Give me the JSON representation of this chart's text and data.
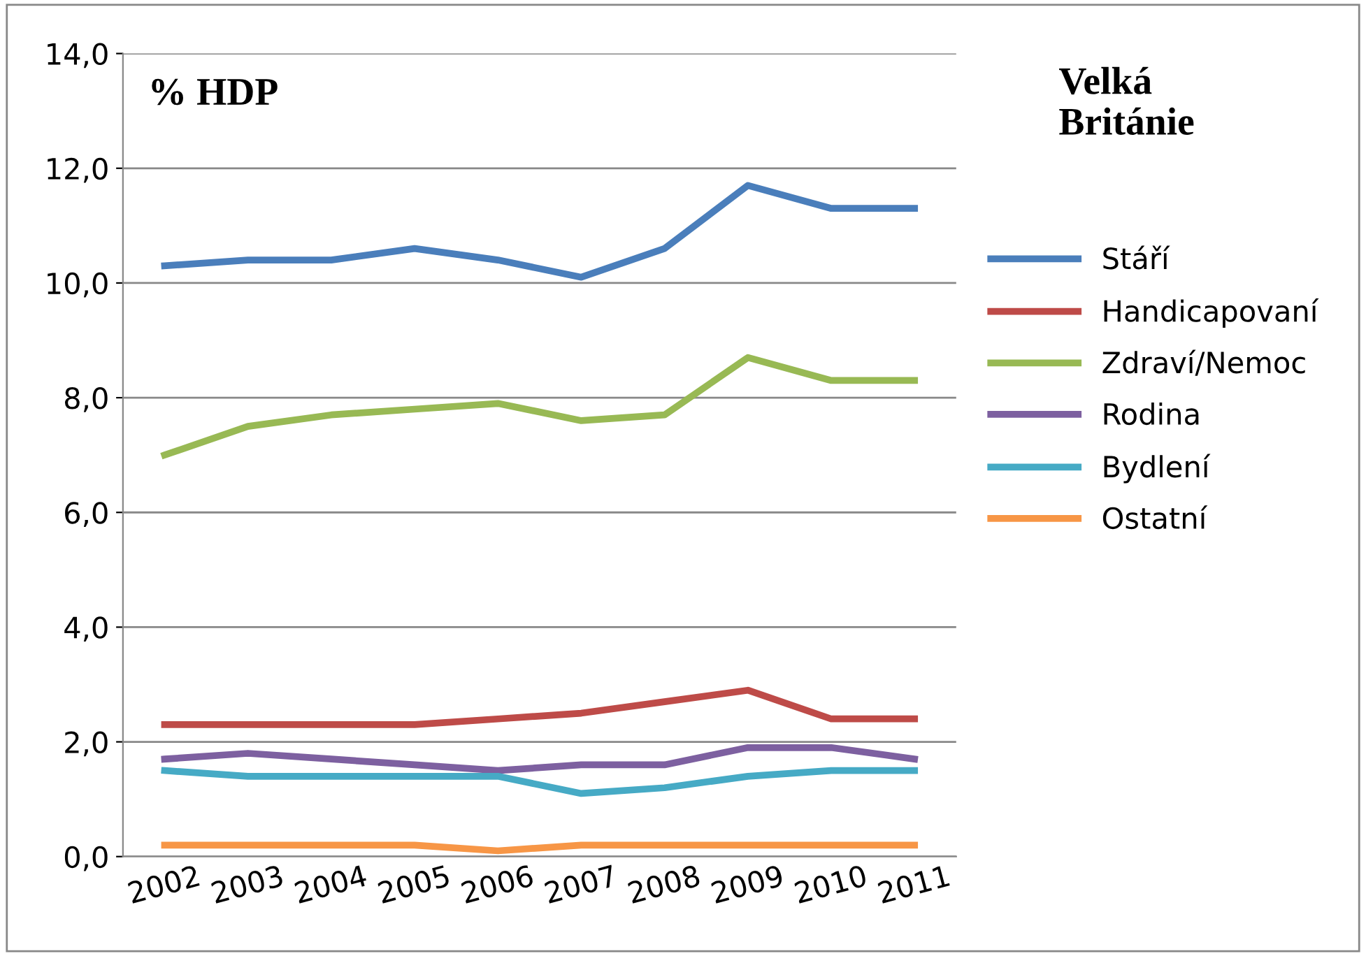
{
  "chart_data": {
    "type": "line",
    "title": "Velká\nBritánie",
    "annotations": [
      "% HDP"
    ],
    "categories": [
      "2002",
      "2003",
      "2004",
      "2005",
      "2006",
      "2007",
      "2008",
      "2009",
      "2010",
      "2011"
    ],
    "series": [
      {
        "name": "Stáří",
        "color": "#4a7ebb",
        "values": [
          10.3,
          10.4,
          10.4,
          10.6,
          10.4,
          10.1,
          10.6,
          11.7,
          11.3,
          11.3
        ]
      },
      {
        "name": "Handicapovaní",
        "color": "#be4b48",
        "values": [
          2.3,
          2.3,
          2.3,
          2.3,
          2.4,
          2.5,
          2.7,
          2.9,
          2.4,
          2.4
        ]
      },
      {
        "name": "Zdraví/Nemoc",
        "color": "#98b954",
        "values": [
          7.0,
          7.5,
          7.7,
          7.8,
          7.9,
          7.6,
          7.7,
          8.7,
          8.3,
          8.3
        ]
      },
      {
        "name": "Rodina",
        "color": "#7d60a0",
        "values": [
          1.7,
          1.8,
          1.7,
          1.6,
          1.5,
          1.6,
          1.6,
          1.9,
          1.9,
          1.7
        ]
      },
      {
        "name": "Bydlení",
        "color": "#46aac5",
        "values": [
          1.5,
          1.4,
          1.4,
          1.4,
          1.4,
          1.1,
          1.2,
          1.4,
          1.5,
          1.5
        ]
      },
      {
        "name": "Ostatní",
        "color": "#f79646",
        "values": [
          0.2,
          0.2,
          0.2,
          0.2,
          0.1,
          0.2,
          0.2,
          0.2,
          0.2,
          0.2
        ]
      }
    ],
    "ylim": [
      0,
      14
    ],
    "yticks": [
      {
        "value": 0,
        "label": "0,0"
      },
      {
        "value": 2,
        "label": "2,0"
      },
      {
        "value": 4,
        "label": "4,0"
      },
      {
        "value": 6,
        "label": "6,0"
      },
      {
        "value": 8,
        "label": "8,0"
      },
      {
        "value": 10,
        "label": "10,0"
      },
      {
        "value": 12,
        "label": "12,0"
      },
      {
        "value": 14,
        "label": "14,0"
      }
    ],
    "grid": "y",
    "legend": "right",
    "marker": "none",
    "line_style": "solid"
  }
}
